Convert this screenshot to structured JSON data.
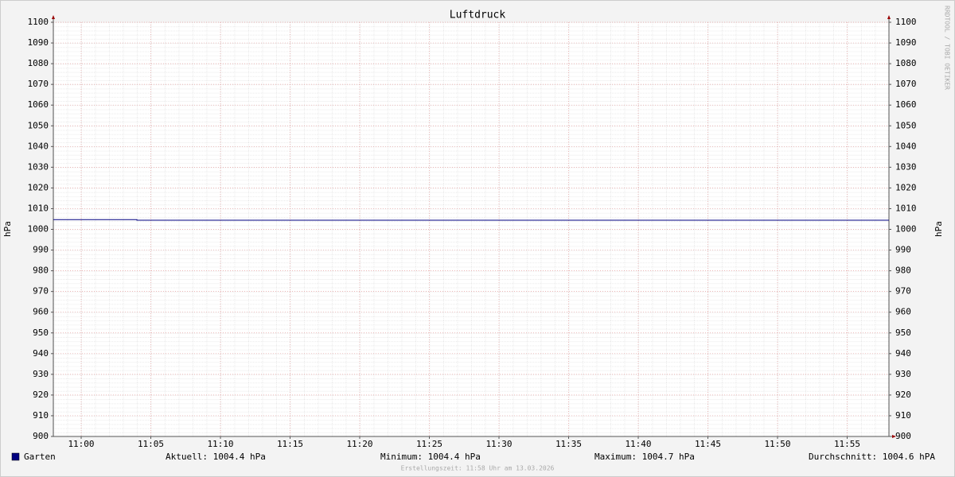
{
  "chart_data": {
    "type": "line",
    "title": "Luftdruck",
    "y_label": "hPa",
    "watermark": "RRDTOOL / TOBI OETIKER",
    "xlim": [
      "10:58",
      "11:58"
    ],
    "xticks": [
      "11:00",
      "11:05",
      "11:10",
      "11:15",
      "11:20",
      "11:25",
      "11:30",
      "11:35",
      "11:40",
      "11:45",
      "11:50",
      "11:55"
    ],
    "ylim": [
      900,
      1100
    ],
    "yticks": [
      900,
      910,
      920,
      930,
      940,
      950,
      960,
      970,
      980,
      990,
      1000,
      1010,
      1020,
      1030,
      1040,
      1050,
      1060,
      1070,
      1080,
      1090,
      1100
    ],
    "grid": true,
    "series": [
      {
        "name": "Garten",
        "color": "#000080",
        "x": [
          "10:58",
          "11:04",
          "11:04",
          "11:58"
        ],
        "values": [
          1004.7,
          1004.7,
          1004.4,
          1004.4
        ]
      }
    ],
    "stats": [
      "Aktuell: 1004.4 hPa",
      "Minimum: 1004.4 hPa",
      "Maximum: 1004.7 hPa",
      "Durchschnitt: 1004.6 hPA"
    ],
    "footer": "Erstellungszeit: 11:58 Uhr am 13.03.2026"
  }
}
